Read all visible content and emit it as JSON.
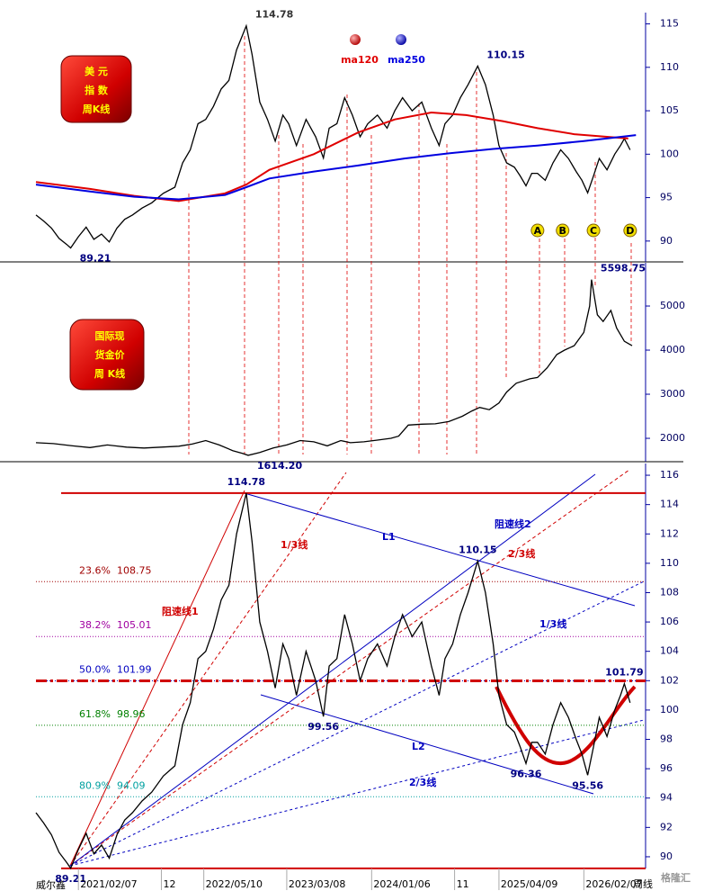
{
  "source": "威尔鑫",
  "watermark": "格隆汇",
  "chart_data": [
    {
      "type": "line",
      "badge": [
        "美 元",
        "指 数",
        "周K线"
      ],
      "color": "#000000",
      "x": [
        0,
        4,
        8,
        12,
        16,
        18,
        22,
        26,
        30,
        34,
        38,
        42,
        46,
        50,
        55,
        60,
        66,
        72,
        76,
        80,
        84,
        88,
        92,
        96,
        100,
        104,
        109,
        112,
        116,
        120,
        124,
        128,
        131,
        135,
        140,
        145,
        149,
        152,
        156,
        160,
        164,
        168,
        172,
        177,
        182,
        186,
        190,
        195,
        200,
        205,
        209,
        212,
        216,
        220,
        224,
        229,
        233,
        237,
        240,
        244,
        248,
        251,
        254,
        257,
        260,
        264,
        268,
        272,
        276,
        280,
        283,
        286,
        289,
        292,
        296,
        300,
        303,
        305,
        308
      ],
      "values": [
        93.0,
        92.3,
        91.5,
        90.3,
        89.6,
        89.21,
        90.5,
        91.6,
        90.2,
        90.8,
        89.9,
        91.5,
        92.5,
        93.0,
        93.8,
        94.4,
        95.5,
        96.2,
        99.0,
        100.5,
        103.5,
        104.0,
        105.5,
        107.5,
        108.5,
        112.0,
        114.78,
        111.5,
        106.0,
        104.0,
        101.5,
        104.5,
        103.5,
        101.0,
        104.0,
        102.0,
        99.56,
        103.0,
        103.5,
        106.5,
        104.5,
        102.0,
        103.5,
        104.5,
        103.0,
        105.0,
        106.5,
        105.0,
        106.0,
        103.0,
        101.0,
        103.5,
        104.5,
        106.5,
        108.0,
        110.15,
        108.0,
        104.5,
        101.0,
        99.0,
        98.5,
        97.5,
        96.36,
        97.8,
        97.8,
        97.0,
        99.0,
        100.5,
        99.5,
        98.0,
        97.0,
        95.56,
        97.5,
        99.5,
        98.2,
        100.0,
        101.0,
        101.79,
        100.5
      ],
      "series": [
        {
          "name": "ma120",
          "color": "#e00000",
          "x": [
            0,
            28,
            51,
            74,
            98,
            109,
            121,
            144,
            167,
            186,
            205,
            223,
            242,
            260,
            279,
            307
          ],
          "values": [
            96.8,
            96.0,
            95.2,
            94.6,
            95.5,
            96.5,
            98.2,
            100.0,
            102.5,
            104.0,
            104.8,
            104.5,
            103.8,
            103.0,
            102.3,
            101.8
          ]
        },
        {
          "name": "ma250",
          "color": "#0000e0",
          "x": [
            0,
            28,
            51,
            74,
            98,
            109,
            121,
            144,
            167,
            191,
            214,
            237,
            260,
            284,
            311
          ],
          "values": [
            96.5,
            95.7,
            95.1,
            94.8,
            95.3,
            96.2,
            97.2,
            98.0,
            98.7,
            99.5,
            100.1,
            100.6,
            101.0,
            101.5,
            102.2
          ]
        }
      ],
      "annotations": [
        {
          "value": 114.78,
          "x": 109
        },
        {
          "value": 89.21,
          "x": 18
        },
        {
          "value": 110.15,
          "x": 229
        }
      ],
      "markers": [
        {
          "label": "A",
          "x": 260
        },
        {
          "label": "B",
          "x": 273
        },
        {
          "label": "C",
          "x": 289
        },
        {
          "label": "D",
          "x": 308
        }
      ],
      "xlim": [
        0,
        316
      ],
      "ylim": [
        87.6,
        116.3
      ],
      "yticks": [
        90,
        95,
        100,
        105,
        110,
        115
      ]
    },
    {
      "type": "line",
      "badge": [
        "国际现",
        "货金价",
        "周 K线"
      ],
      "color": "#000000",
      "x": [
        0,
        9,
        19,
        28,
        37,
        47,
        56,
        65,
        74,
        81,
        88,
        95,
        102,
        107,
        110,
        116,
        123,
        130,
        137,
        144,
        151,
        158,
        163,
        170,
        177,
        184,
        188,
        193,
        200,
        207,
        214,
        221,
        226,
        230,
        235,
        240,
        244,
        249,
        256,
        260,
        265,
        270,
        274,
        279,
        284,
        287,
        288,
        291,
        294,
        298,
        301,
        305,
        309
      ],
      "values": [
        1900,
        1880,
        1830,
        1790,
        1850,
        1800,
        1780,
        1800,
        1820,
        1870,
        1950,
        1850,
        1720,
        1660,
        1614.2,
        1680,
        1780,
        1850,
        1950,
        1920,
        1830,
        1950,
        1900,
        1920,
        1960,
        2000,
        2050,
        2300,
        2320,
        2330,
        2380,
        2500,
        2620,
        2700,
        2650,
        2800,
        3050,
        3250,
        3350,
        3380,
        3600,
        3900,
        4000,
        4100,
        4400,
        5000,
        5598.75,
        4800,
        4650,
        4900,
        4500,
        4200,
        4100
      ],
      "annotations": [
        {
          "value": 5598.75,
          "x": 288
        },
        {
          "value": 1614.2,
          "label": "1614.20",
          "x": 110
        }
      ],
      "xlim": [
        0,
        316
      ],
      "ylim": [
        1470,
        5980
      ],
      "yticks": [
        2000,
        3000,
        4000,
        5000
      ]
    },
    {
      "type": "line",
      "color": "#000000",
      "x": [
        0,
        4,
        8,
        12,
        16,
        18,
        22,
        26,
        30,
        34,
        38,
        42,
        46,
        50,
        55,
        60,
        66,
        72,
        76,
        80,
        84,
        88,
        92,
        96,
        100,
        104,
        109,
        112,
        116,
        120,
        124,
        128,
        131,
        135,
        140,
        145,
        149,
        152,
        156,
        160,
        164,
        168,
        172,
        177,
        182,
        186,
        190,
        195,
        200,
        205,
        209,
        212,
        216,
        220,
        224,
        229,
        233,
        237,
        240,
        244,
        248,
        251,
        254,
        257,
        260,
        264,
        268,
        272,
        276,
        280,
        283,
        286,
        289,
        292,
        296,
        300,
        303,
        305,
        308
      ],
      "values": [
        93.0,
        92.3,
        91.5,
        90.3,
        89.6,
        89.21,
        90.5,
        91.6,
        90.2,
        90.8,
        89.9,
        91.5,
        92.5,
        93.0,
        93.8,
        94.4,
        95.5,
        96.2,
        99.0,
        100.5,
        103.5,
        104.0,
        105.5,
        107.5,
        108.5,
        112.0,
        114.78,
        111.5,
        106.0,
        104.0,
        101.5,
        104.5,
        103.5,
        101.0,
        104.0,
        102.0,
        99.56,
        103.0,
        103.5,
        106.5,
        104.5,
        102.0,
        103.5,
        104.5,
        103.0,
        105.0,
        106.5,
        105.0,
        106.0,
        103.0,
        101.0,
        103.5,
        104.5,
        106.5,
        108.0,
        110.15,
        108.0,
        104.5,
        101.0,
        99.0,
        98.5,
        97.5,
        96.36,
        97.8,
        97.8,
        97.0,
        99.0,
        100.5,
        99.5,
        98.0,
        97.0,
        95.56,
        97.5,
        99.5,
        98.2,
        100.0,
        101.0,
        101.79,
        100.5
      ],
      "annotations": [
        {
          "value": 114.78,
          "x": 109
        },
        {
          "value": 110.15,
          "x": 229
        },
        {
          "value": 99.56,
          "x": 149
        },
        {
          "value": 96.36,
          "x": 254
        },
        {
          "value": 95.56,
          "x": 286
        },
        {
          "value": 101.79,
          "x": 305
        },
        {
          "value": 89.21,
          "x": 18
        }
      ],
      "fib": [
        {
          "ratio": "23.6%",
          "value": 108.75,
          "color": "#a00000"
        },
        {
          "ratio": "38.2%",
          "value": 105.01,
          "color": "#a000a0"
        },
        {
          "ratio": "50.0%",
          "value": 101.99,
          "color": "#0000c0",
          "emphasis": true
        },
        {
          "ratio": "61.8%",
          "value": 98.96,
          "color": "#008000"
        },
        {
          "ratio": "80.9%",
          "value": 94.09,
          "color": "#00a0a0"
        }
      ],
      "hlines": [
        114.78,
        89.21
      ],
      "hline_color": "#d00000",
      "line_labels": [
        "阻速线1",
        "1/3线",
        "L1",
        "阻速线2",
        "2/3线",
        "1/3线",
        "L2",
        "2/3线"
      ],
      "xticks": [
        {
          "value": 22,
          "label": "2021/02/07"
        },
        {
          "value": 65,
          "label": "12"
        },
        {
          "value": 87,
          "label": "2022/05/10"
        },
        {
          "value": 130,
          "label": "2023/03/08"
        },
        {
          "value": 174,
          "label": "2024/01/06"
        },
        {
          "value": 217,
          "label": "11"
        },
        {
          "value": 240,
          "label": "2025/04/09"
        },
        {
          "value": 284,
          "label": "2026/02/07"
        }
      ],
      "x_unit": "周线",
      "xlim": [
        0,
        316
      ],
      "ylim": [
        89.2,
        116.8
      ],
      "yticks": [
        90,
        92,
        94,
        96,
        98,
        100,
        102,
        104,
        106,
        108,
        110,
        112,
        114,
        116
      ]
    }
  ]
}
